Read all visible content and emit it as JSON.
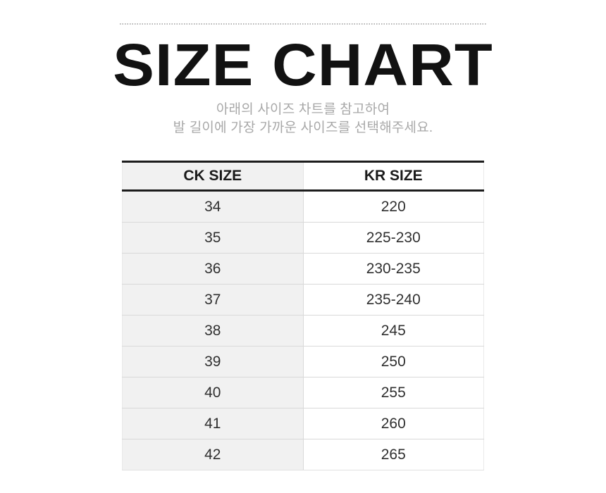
{
  "title": "SIZE CHART",
  "subtitle": {
    "line1": "아래의 사이즈 차트를 참고하여",
    "line2": "발 길이에 가장 가까운 사이즈를 선택해주세요."
  },
  "chart_data": {
    "type": "table",
    "title": "SIZE CHART",
    "columns": [
      "CK SIZE",
      "KR SIZE"
    ],
    "rows": [
      [
        "34",
        "220"
      ],
      [
        "35",
        "225-230"
      ],
      [
        "36",
        "230-235"
      ],
      [
        "37",
        "235-240"
      ],
      [
        "38",
        "245"
      ],
      [
        "39",
        "250"
      ],
      [
        "40",
        "255"
      ],
      [
        "41",
        "260"
      ],
      [
        "42",
        "265"
      ]
    ]
  },
  "colors": {
    "title_text": "#121212",
    "subtitle_text": "#a8a8a8",
    "table_border_dark": "#1c1c1c",
    "table_border_light": "#d9d9d9",
    "shaded_column_bg": "#f1f1f1",
    "cell_text": "#303030"
  }
}
